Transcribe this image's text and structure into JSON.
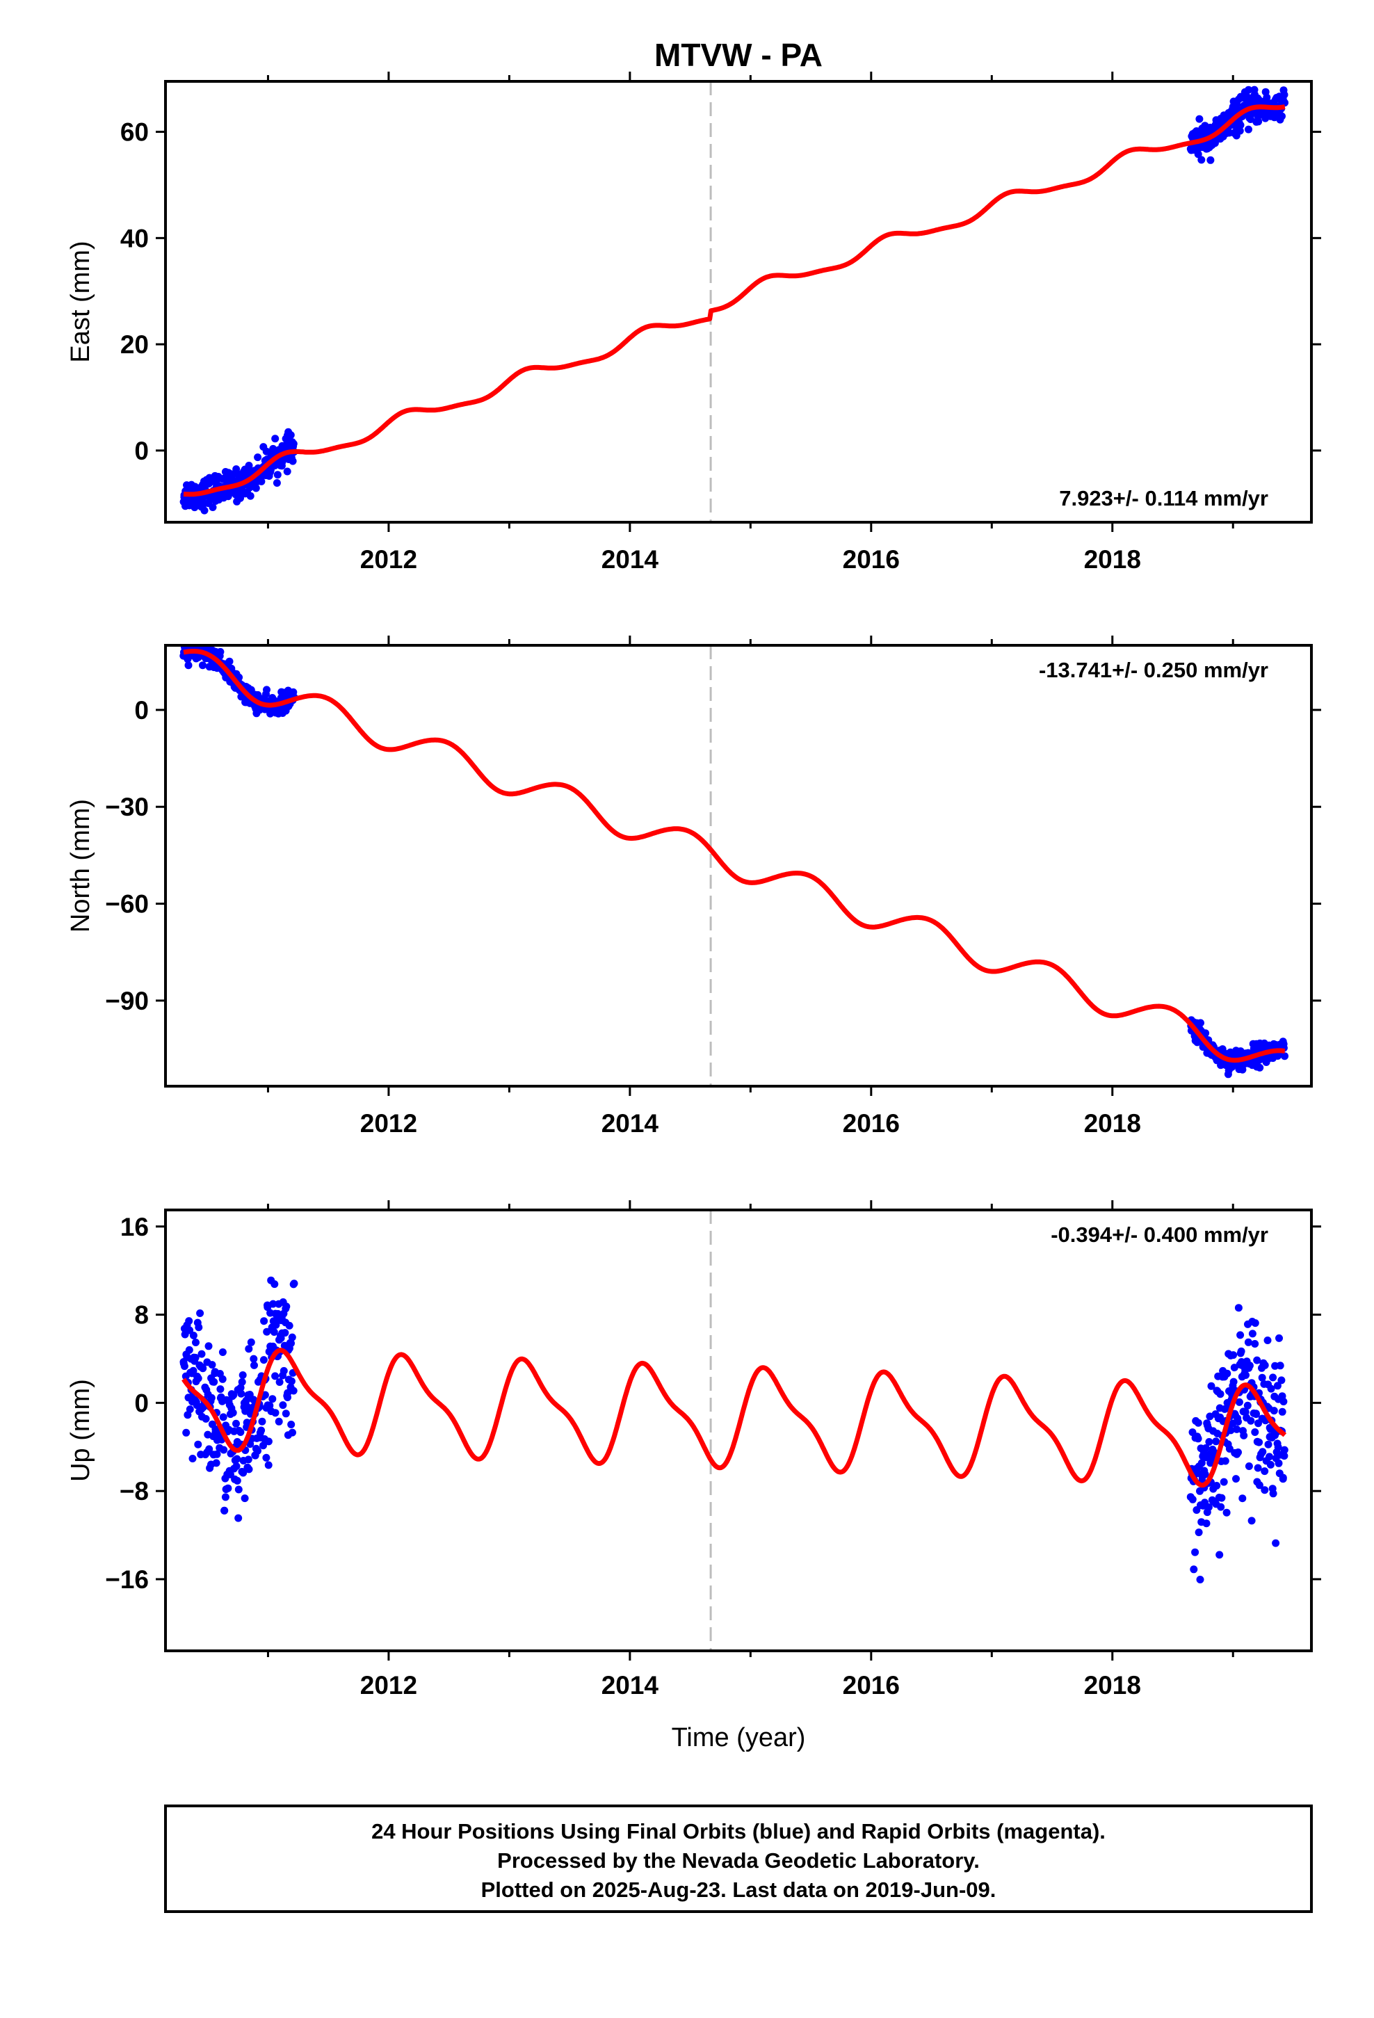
{
  "figure": {
    "title": "MTVW - PA",
    "caption_lines": [
      "24 Hour Positions Using Final Orbits (blue) and Rapid Orbits (magenta).",
      "Processed by the Nevada Geodetic Laboratory.",
      "Plotted on 2025-Aug-23. Last data on 2019-Jun-09."
    ]
  },
  "colors": {
    "data_points": "#0000ff",
    "model_line": "#ff0000",
    "reference_line": "#bdbdbd",
    "frame": "#000000"
  },
  "chart_data": [
    {
      "type": "scatter",
      "name": "east",
      "ylabel": "East (mm)",
      "xlabel": "",
      "rate_text": "7.923+/- 0.114 mm/yr",
      "rate_position": "bottom-right",
      "xlim": [
        2010.15,
        2019.65
      ],
      "ylim": [
        -13.5,
        69.5
      ],
      "x_ticks": [
        2012,
        2014,
        2016,
        2018
      ],
      "x_tick_labels": [
        "2012",
        "2014",
        "2016",
        "2018"
      ],
      "y_ticks": [
        0,
        20,
        40,
        60
      ],
      "y_tick_labels": [
        "0",
        "20",
        "40",
        "60"
      ],
      "vertical_line_x": 2014.67,
      "model": {
        "rate_mm_per_yr": 7.923,
        "ref_epoch": 2010.3,
        "intercept": -8.8,
        "offset": {
          "epoch": 2014.67,
          "size": 1.5
        },
        "annual": {
          "amplitude": 1.3,
          "phase": 0.5
        },
        "semiannual": {
          "amplitude": 0.4,
          "phase": 0.2
        }
      },
      "data_clusters": [
        {
          "t_start": 2010.3,
          "t_end": 2011.22,
          "scatter": 1.4
        },
        {
          "t_start": 2018.65,
          "t_end": 2019.43,
          "scatter": 1.5
        }
      ]
    },
    {
      "type": "scatter",
      "name": "north",
      "ylabel": "North (mm)",
      "xlabel": "",
      "rate_text": "-13.741+/- 0.250 mm/yr",
      "rate_position": "top-right",
      "xlim": [
        2010.15,
        2019.65
      ],
      "ylim": [
        -116.5,
        20
      ],
      "x_ticks": [
        2012,
        2014,
        2016,
        2018
      ],
      "x_tick_labels": [
        "2012",
        "2014",
        "2016",
        "2018"
      ],
      "y_ticks": [
        0,
        -30,
        -60,
        -90
      ],
      "y_tick_labels": [
        "0",
        "−30",
        "−60",
        "−90"
      ],
      "vertical_line_x": 2014.67,
      "model": {
        "rate_mm_per_yr": -13.741,
        "ref_epoch": 2010.3,
        "intercept": 15.5,
        "offset": {
          "epoch": 2014.67,
          "size": 0
        },
        "annual": {
          "amplitude": 4.6,
          "phase": -1.3
        },
        "semiannual": {
          "amplitude": 0.3,
          "phase": 0.1
        }
      },
      "data_clusters": [
        {
          "t_start": 2010.3,
          "t_end": 2011.22,
          "scatter": 1.5
        },
        {
          "t_start": 2018.65,
          "t_end": 2019.43,
          "scatter": 1.6
        }
      ]
    },
    {
      "type": "scatter",
      "name": "up",
      "ylabel": "Up (mm)",
      "xlabel": "Time (year)",
      "rate_text": "-0.394+/- 0.400 mm/yr",
      "rate_position": "top-right",
      "xlim": [
        2010.15,
        2019.65
      ],
      "ylim": [
        -22.5,
        17.5
      ],
      "x_ticks": [
        2012,
        2014,
        2016,
        2018
      ],
      "x_tick_labels": [
        "2012",
        "2014",
        "2016",
        "2018"
      ],
      "y_ticks": [
        16,
        8,
        0,
        -8,
        -16
      ],
      "y_tick_labels": [
        "16",
        "8",
        "0",
        "−8",
        "−16"
      ],
      "vertical_line_x": 2014.67,
      "model": {
        "rate_mm_per_yr": -0.394,
        "ref_epoch": 2014.0,
        "intercept": -0.9,
        "offset": {
          "epoch": 2014.67,
          "size": 0
        },
        "annual": {
          "amplitude": 4.0,
          "phase": 0.45
        },
        "semiannual": {
          "amplitude": 1.3,
          "phase": 1.0
        }
      },
      "data_clusters": [
        {
          "t_start": 2010.3,
          "t_end": 2011.22,
          "scatter": 3.4
        },
        {
          "t_start": 2018.65,
          "t_end": 2019.43,
          "scatter": 3.6
        }
      ]
    }
  ]
}
